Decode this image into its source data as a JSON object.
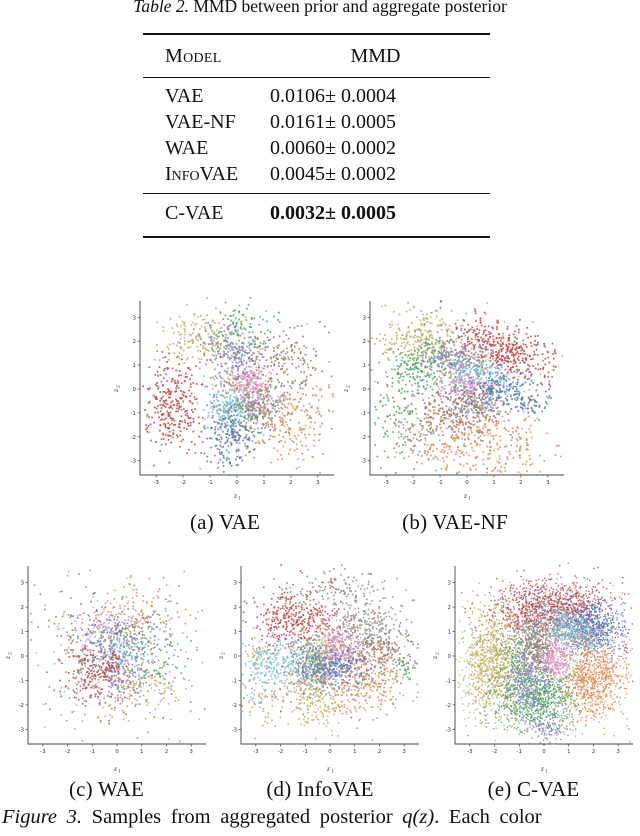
{
  "table_caption": {
    "label": "Table 2.",
    "text": "MMD between prior and aggregate posterior"
  },
  "table": {
    "headers": [
      "Model",
      "MMD"
    ],
    "groups": [
      {
        "bold": false,
        "rows": [
          [
            "VAE",
            "0.0106± 0.0004"
          ],
          [
            "VAE-NF",
            "0.0161± 0.0005"
          ],
          [
            "WAE",
            "0.0060± 0.0002"
          ],
          [
            "InfoVAE",
            "0.0045± 0.0002"
          ]
        ]
      },
      {
        "bold": true,
        "rows": [
          [
            "C-VAE",
            "0.0032± 0.0005"
          ]
        ]
      }
    ]
  },
  "figure_caption": {
    "label": "Figure 3.",
    "before_math": "Samples from aggregated posterior",
    "math": "q(z)",
    "after_math": ".  Each color"
  },
  "palette": {
    "red": "#c24444",
    "orange": "#e88a55",
    "khaki": "#c4ae62",
    "green": "#4fa85f",
    "blue": "#4f78c0",
    "cyan": "#6fc2dd",
    "purple": "#9480cc",
    "pink": "#e795c9",
    "brown": "#97796a",
    "gray": "#909090"
  },
  "chart_data": [
    {
      "type": "scatter",
      "id": "vae",
      "caption": "(a) VAE",
      "row": 1,
      "xlabel": "z1",
      "ylabel": "z2",
      "xlim": [
        -3.6,
        3.6
      ],
      "ylim": [
        -3.6,
        3.6
      ],
      "xticks": [
        -3,
        -2,
        -1,
        0,
        1,
        2,
        3
      ],
      "yticks": [
        -3,
        -2,
        -1,
        0,
        1,
        2,
        3
      ],
      "cluster_fields": [
        "color",
        "cx",
        "cy",
        "sx",
        "sy",
        "n",
        "rot_deg"
      ],
      "clusters": [
        [
          "#c4ae62",
          -1.4,
          2.2,
          0.75,
          0.55,
          160
        ],
        [
          "#c4ae62",
          0.0,
          0.3,
          0.35,
          0.3,
          70
        ],
        [
          "#4fa85f",
          0.05,
          2.2,
          0.65,
          0.6,
          130
        ],
        [
          "#4fa85f",
          0.3,
          -1.0,
          0.5,
          0.4,
          60
        ],
        [
          "#9480cc",
          -0.15,
          1.25,
          0.5,
          0.65,
          170
        ],
        [
          "#97796a",
          1.6,
          1.0,
          0.75,
          0.75,
          170
        ],
        [
          "#97796a",
          0.4,
          -1.4,
          0.55,
          0.5,
          90
        ],
        [
          "#c24444",
          -2.4,
          -0.7,
          0.5,
          0.85,
          260
        ],
        [
          "#e795c9",
          0.45,
          0.1,
          0.35,
          0.5,
          140
        ],
        [
          "#6fc2dd",
          -0.35,
          -0.75,
          0.4,
          0.4,
          140
        ],
        [
          "#909090",
          0.75,
          -0.65,
          0.5,
          0.35,
          170
        ],
        [
          "#4f78c0",
          -0.3,
          -2.0,
          0.45,
          0.6,
          140
        ],
        [
          "#e88a55",
          2.0,
          -1.4,
          0.7,
          0.8,
          160
        ]
      ]
    },
    {
      "type": "scatter",
      "id": "vae-nf",
      "caption": "(b) VAE-NF",
      "row": 1,
      "xlabel": "z1",
      "ylabel": "z2",
      "xlim": [
        -3.6,
        3.6
      ],
      "ylim": [
        -3.6,
        3.6
      ],
      "xticks": [
        -3,
        -2,
        -1,
        0,
        1,
        2,
        3
      ],
      "yticks": [
        -3,
        -2,
        -1,
        0,
        1,
        2,
        3
      ],
      "cluster_fields": [
        "color",
        "cx",
        "cy",
        "sx",
        "sy",
        "n",
        "rot_deg"
      ],
      "clusters": [
        [
          "#c24444",
          1.35,
          1.65,
          1.0,
          0.5,
          380,
          -25
        ],
        [
          "#c4ae62",
          -1.6,
          2.05,
          0.85,
          0.55,
          220
        ],
        [
          "#c4ae62",
          0.0,
          1.0,
          0.4,
          0.5,
          80
        ],
        [
          "#4fa85f",
          -1.5,
          1.0,
          0.85,
          0.55,
          230
        ],
        [
          "#4fa85f",
          -2.7,
          -1.2,
          0.45,
          0.9,
          80
        ],
        [
          "#9480cc",
          -0.55,
          1.35,
          0.6,
          0.4,
          160
        ],
        [
          "#6fc2dd",
          0.55,
          0.55,
          0.6,
          0.35,
          160
        ],
        [
          "#e795c9",
          -0.15,
          0.1,
          0.5,
          0.3,
          140
        ],
        [
          "#4f78c0",
          1.2,
          -0.1,
          0.65,
          0.35,
          150
        ],
        [
          "#4f78c0",
          2.4,
          -0.55,
          0.3,
          0.25,
          40
        ],
        [
          "#909090",
          0.35,
          -0.55,
          0.45,
          0.3,
          140
        ],
        [
          "#909090",
          -1.9,
          -2.0,
          0.4,
          0.5,
          50
        ],
        [
          "#97796a",
          -0.5,
          -1.0,
          0.85,
          0.5,
          220
        ],
        [
          "#e88a55",
          0.4,
          -2.2,
          1.3,
          0.75,
          300
        ]
      ]
    },
    {
      "type": "scatter",
      "id": "wae",
      "caption": "(c) WAE",
      "row": 2,
      "xlabel": "z1",
      "ylabel": "z2",
      "xlim": [
        -3.6,
        3.6
      ],
      "ylim": [
        -3.6,
        3.6
      ],
      "xticks": [
        -3,
        -2,
        -1,
        0,
        1,
        2,
        3
      ],
      "yticks": [
        -3,
        -2,
        -1,
        0,
        1,
        2,
        3
      ],
      "cluster_fields": [
        "color",
        "cx",
        "cy",
        "sx",
        "sy",
        "n",
        "rot_deg"
      ],
      "clusters": [
        [
          "#e88a55",
          0.4,
          1.6,
          0.85,
          0.7,
          110
        ],
        [
          "#909090",
          1.0,
          1.0,
          0.7,
          0.55,
          95
        ],
        [
          "#e795c9",
          -0.75,
          0.85,
          0.7,
          0.6,
          105
        ],
        [
          "#97796a",
          -1.35,
          0.3,
          0.65,
          0.8,
          105
        ],
        [
          "#4f78c0",
          -0.1,
          0.6,
          0.6,
          0.55,
          95
        ],
        [
          "#6fc2dd",
          0.0,
          0.1,
          0.5,
          0.45,
          85
        ],
        [
          "#4fa85f",
          1.05,
          -0.2,
          0.8,
          0.6,
          105
        ],
        [
          "#c24444",
          -0.9,
          -1.0,
          0.65,
          0.55,
          115
        ],
        [
          "#c24444",
          -0.35,
          -0.45,
          0.3,
          0.18,
          60,
          45
        ],
        [
          "#9480cc",
          0.15,
          -0.95,
          0.5,
          0.5,
          95
        ],
        [
          "#c4ae62",
          0.9,
          -1.35,
          0.8,
          0.65,
          105
        ]
      ]
    },
    {
      "type": "scatter",
      "id": "infovae",
      "caption": "(d) InfoVAE",
      "row": 2,
      "xlabel": "z1",
      "ylabel": "z2",
      "xlim": [
        -3.6,
        3.6
      ],
      "ylim": [
        -3.6,
        3.6
      ],
      "xticks": [
        -3,
        -2,
        -1,
        0,
        1,
        2,
        3
      ],
      "yticks": [
        -3,
        -2,
        -1,
        0,
        1,
        2,
        3
      ],
      "cluster_fields": [
        "color",
        "cx",
        "cy",
        "sx",
        "sy",
        "n",
        "rot_deg"
      ],
      "clusters": [
        [
          "#c24444",
          -1.5,
          1.45,
          0.85,
          0.6,
          340
        ],
        [
          "#909090",
          1.25,
          1.15,
          0.75,
          0.55,
          280
        ],
        [
          "#909090",
          0.8,
          2.6,
          0.9,
          0.35,
          60
        ],
        [
          "#97796a",
          1.75,
          0.15,
          0.8,
          0.5,
          200
        ],
        [
          "#97796a",
          0.3,
          2.9,
          0.7,
          0.3,
          50
        ],
        [
          "#e88a55",
          1.35,
          -1.05,
          0.85,
          0.7,
          280
        ],
        [
          "#e88a55",
          -2.6,
          -1.9,
          0.3,
          0.4,
          40
        ],
        [
          "#c4ae62",
          -0.65,
          -1.35,
          0.6,
          0.75,
          280
        ],
        [
          "#c4ae62",
          -2.95,
          0.0,
          0.25,
          0.3,
          40
        ],
        [
          "#c4ae62",
          -0.35,
          0.45,
          0.4,
          0.4,
          90
        ],
        [
          "#6fc2dd",
          -1.75,
          -0.15,
          0.7,
          0.5,
          220
        ],
        [
          "#6fc2dd",
          -2.9,
          -1.0,
          0.3,
          0.6,
          50
        ],
        [
          "#4fa85f",
          -0.55,
          -0.3,
          0.4,
          0.35,
          140
        ],
        [
          "#4fa85f",
          2.9,
          -0.5,
          0.2,
          0.3,
          30
        ],
        [
          "#9480cc",
          -0.6,
          -0.6,
          0.55,
          0.4,
          150
        ],
        [
          "#e795c9",
          0.2,
          0.45,
          0.45,
          0.55,
          160
        ],
        [
          "#4f78c0",
          0.35,
          -0.35,
          0.5,
          0.4,
          150
        ]
      ]
    },
    {
      "type": "scatter",
      "id": "c-vae",
      "caption": "(e) C-VAE",
      "row": 2,
      "xlabel": "z1",
      "ylabel": "z2",
      "xlim": [
        -3.6,
        3.6
      ],
      "ylim": [
        -3.6,
        3.6
      ],
      "xticks": [
        -3,
        -2,
        -1,
        0,
        1,
        2,
        3
      ],
      "yticks": [
        -3,
        -2,
        -1,
        0,
        1,
        2,
        3
      ],
      "cluster_fields": [
        "color",
        "cx",
        "cy",
        "sx",
        "sy",
        "n",
        "rot_deg"
      ],
      "clusters": [
        [
          "#c24444",
          0.2,
          2.0,
          1.15,
          0.55,
          900
        ],
        [
          "#c4ae62",
          -2.15,
          -0.3,
          0.55,
          1.15,
          900
        ],
        [
          "#4f78c0",
          1.85,
          1.15,
          0.65,
          0.55,
          600
        ],
        [
          "#6fc2dd",
          0.95,
          1.2,
          0.75,
          0.3,
          350,
          -35
        ],
        [
          "#e88a55",
          1.95,
          -0.85,
          0.65,
          0.85,
          800
        ],
        [
          "#909090",
          -0.3,
          0.95,
          0.55,
          0.35,
          300
        ],
        [
          "#97796a",
          -0.3,
          0.15,
          0.35,
          0.45,
          250
        ],
        [
          "#e795c9",
          0.45,
          -0.15,
          0.28,
          0.45,
          250
        ],
        [
          "#4fa85f",
          -0.35,
          -1.75,
          0.8,
          0.65,
          800
        ],
        [
          "#4fa85f",
          -1.15,
          -0.2,
          0.3,
          0.5,
          150
        ],
        [
          "#9480cc",
          -0.7,
          -1.1,
          0.4,
          0.7,
          300
        ],
        [
          "#9480cc",
          0.1,
          -2.9,
          0.35,
          0.25,
          80
        ]
      ]
    }
  ]
}
